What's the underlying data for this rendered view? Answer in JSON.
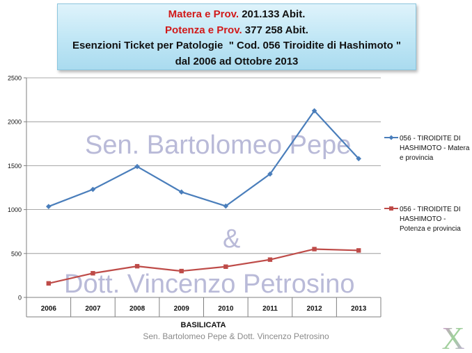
{
  "header": {
    "line1_name": "Matera e Prov.",
    "line1_value": "201.133 Abit.",
    "line2_name": "Potenza e Prov.",
    "line2_value": "377 258 Abit.",
    "line3": "Esenzioni Ticket per Patologie  \" Cod. 056 Tiroidite di Hashimoto \"",
    "line4": "dal 2006 ad Ottobre 2013"
  },
  "watermark": {
    "line1": "Sen. Bartolomeo Pepe",
    "line2": "&",
    "line3": "Dott. Vincenzo Petrosino"
  },
  "footer": {
    "credit": "Sen. Bartolomeo Pepe & Dott. Vincenzo Petrosino"
  },
  "logo": {
    "letter": "X",
    "icon": "x-logo-icon"
  },
  "chart_data": {
    "type": "line",
    "title": "",
    "xlabel": "BASILICATA",
    "ylabel": "",
    "categories": [
      "2006",
      "2007",
      "2008",
      "2009",
      "2010",
      "2011",
      "2012",
      "2013"
    ],
    "ylim": [
      0,
      2500
    ],
    "yticks": [
      "0",
      "500",
      "1000",
      "1500",
      "2000",
      "2500"
    ],
    "grid": true,
    "legend": "right",
    "series": [
      {
        "name": "056 - TIROIDITE DI HASHIMOTO - Matera e provincia",
        "values": [
          1035,
          1230,
          1490,
          1200,
          1040,
          1405,
          2125,
          1580
        ],
        "color": "#4a7ebb",
        "marker": "diamond"
      },
      {
        "name": "056 - TIROIDITE DI HASHIMOTO - Potenza e provincia",
        "values": [
          160,
          275,
          355,
          300,
          350,
          430,
          550,
          535
        ],
        "color": "#be4b48",
        "marker": "square"
      }
    ]
  }
}
